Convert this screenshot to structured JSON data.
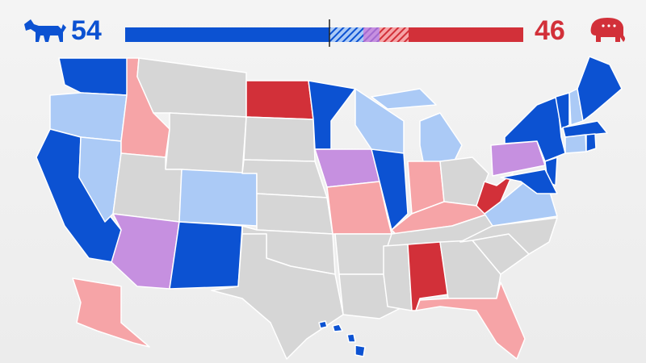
{
  "header": {
    "dem_seats": 54,
    "rep_seats": 46
  }
}
